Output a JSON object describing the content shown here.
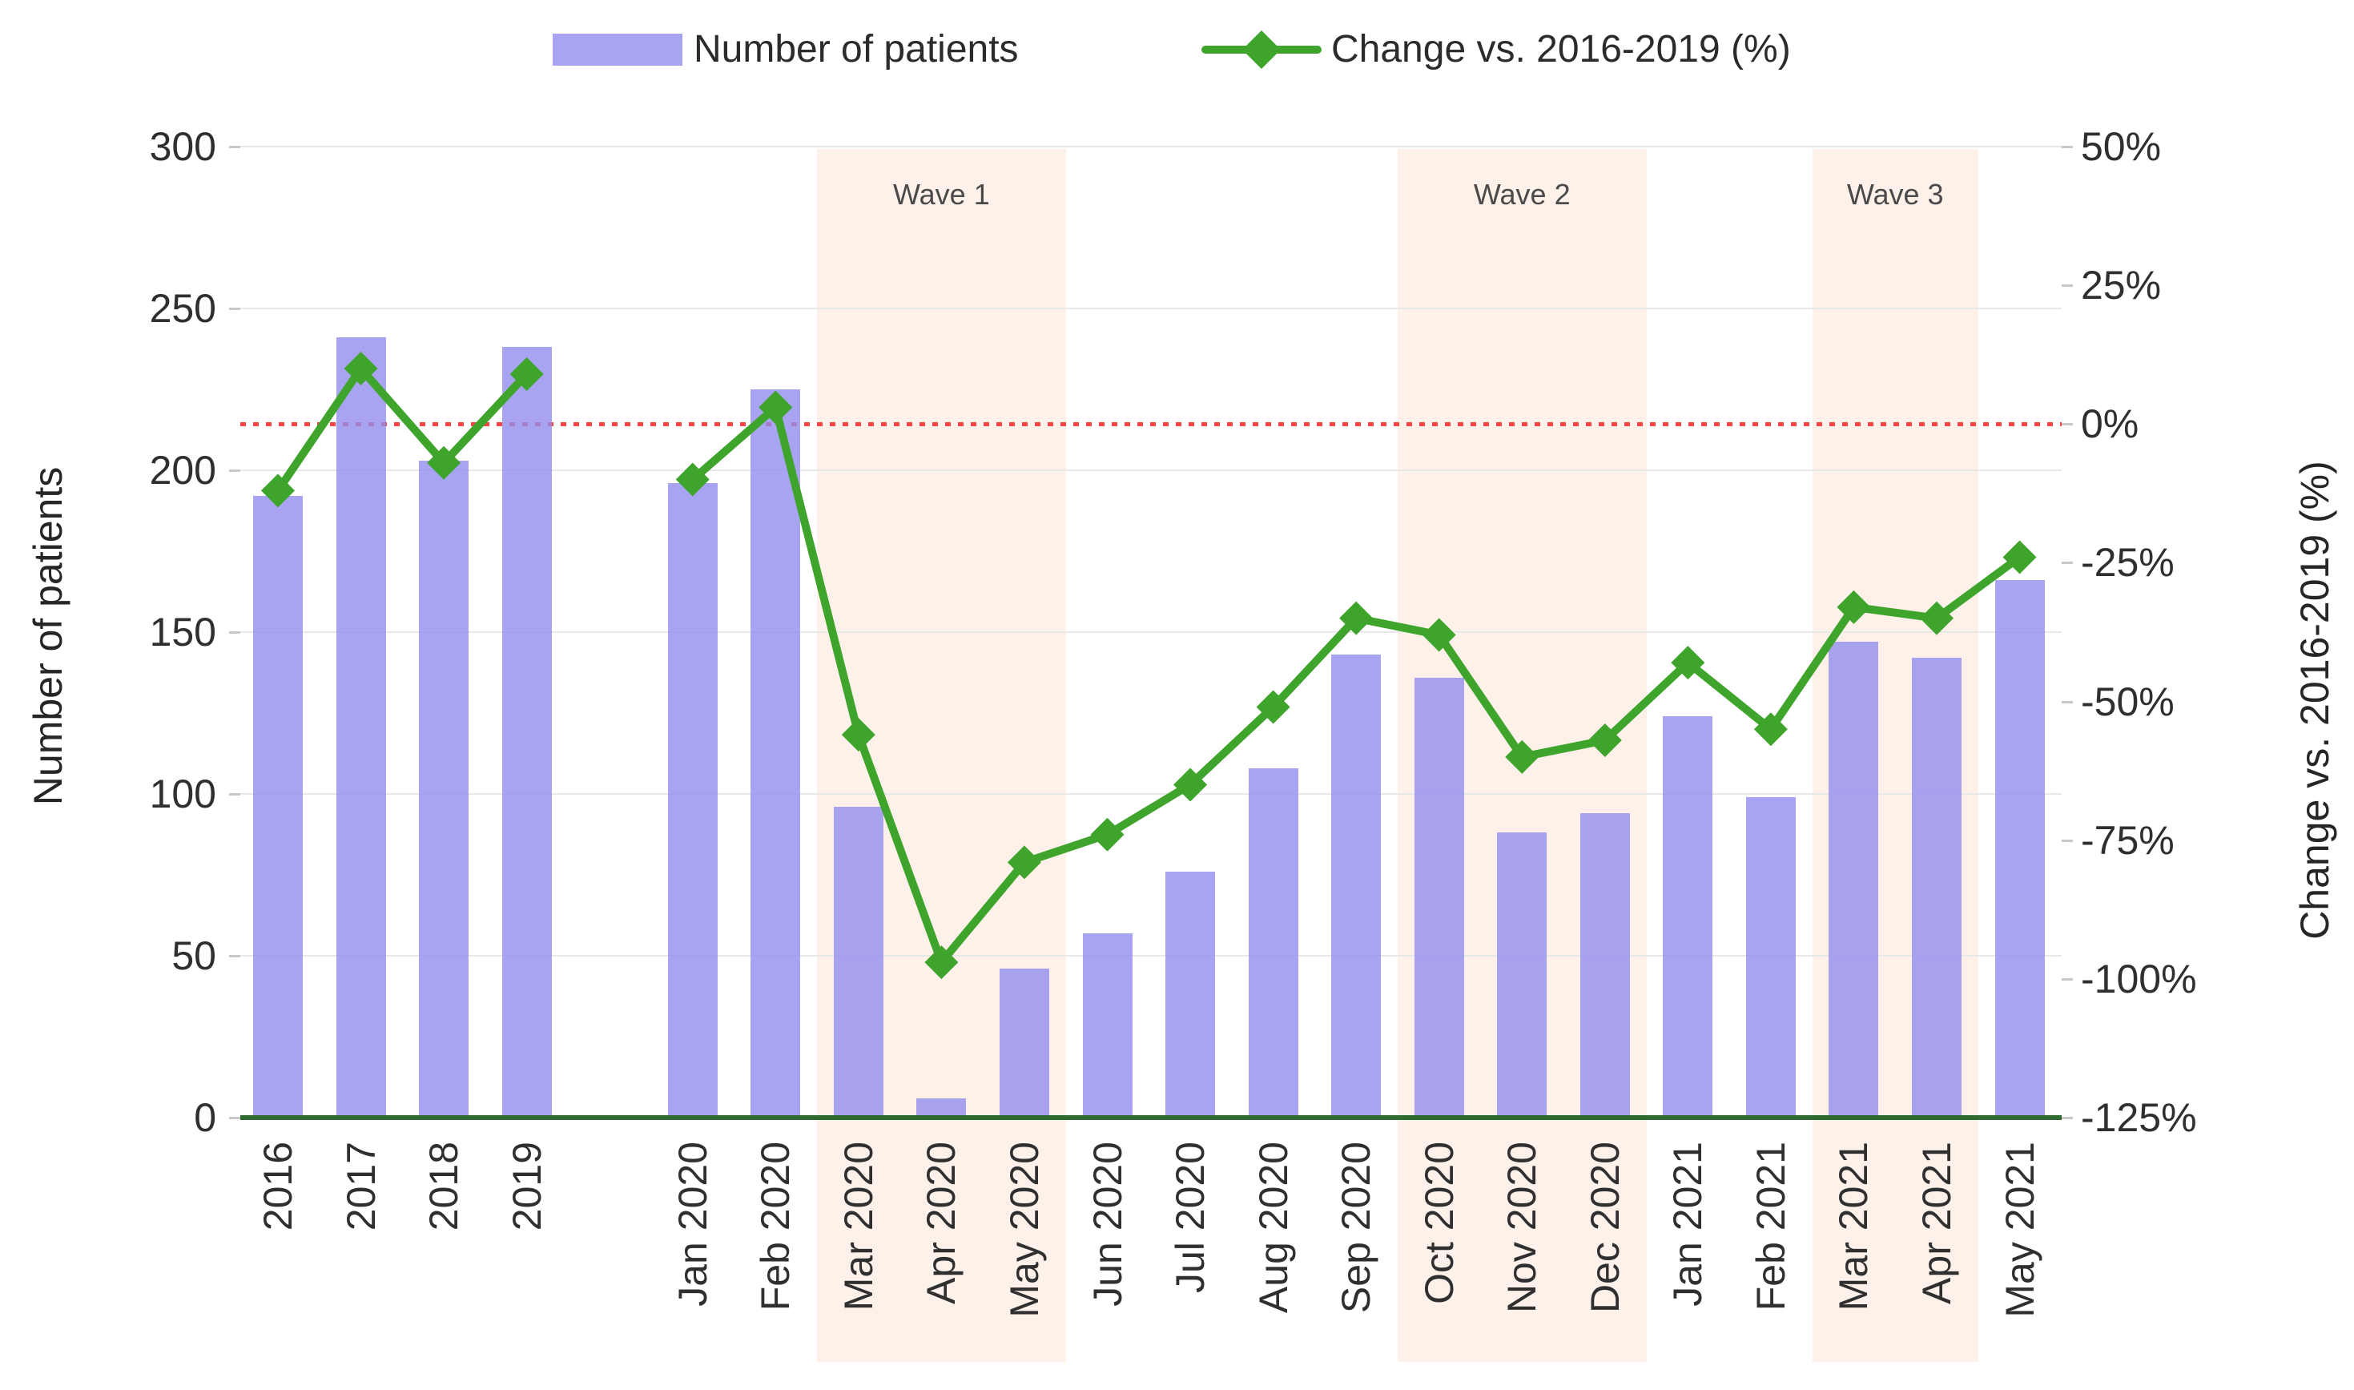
{
  "chart_data": {
    "type": "combo",
    "title": "",
    "categories": [
      "2016",
      "2017",
      "2018",
      "2019",
      "Jan 2020",
      "Feb 2020",
      "Mar 2020",
      "Apr 2020",
      "May 2020",
      "Jun 2020",
      "Jul 2020",
      "Aug 2020",
      "Sep 2020",
      "Oct 2020",
      "Nov 2020",
      "Dec 2020",
      "Jan 2021",
      "Feb 2021",
      "Mar 2021",
      "Apr 2021",
      "May 2021"
    ],
    "series": [
      {
        "name": "Number of patients",
        "type": "bar",
        "axis": "left",
        "values": [
          192,
          241,
          203,
          238,
          196,
          225,
          96,
          6,
          46,
          57,
          76,
          108,
          143,
          136,
          88,
          94,
          124,
          99,
          147,
          142,
          166
        ]
      },
      {
        "name": "Change vs. 2016-2019 (%)",
        "type": "line",
        "axis": "right",
        "values": [
          -12,
          10,
          -7,
          9,
          -10,
          3,
          -56,
          -97,
          -79,
          -74,
          -65,
          -51,
          -35,
          -38,
          -60,
          -57,
          -43,
          -55,
          -33,
          -35,
          -24
        ]
      }
    ],
    "left_axis": {
      "title": "Number of patients",
      "min": 0,
      "max": 300,
      "ticks": [
        0,
        50,
        100,
        150,
        200,
        250,
        300
      ]
    },
    "right_axis": {
      "title": "Change vs. 2016-2019 (%)",
      "min": -125,
      "max": 50,
      "tick_step": 25,
      "ticks": [
        "50%",
        "25%",
        "0%",
        "-25%",
        "-50%",
        "-75%",
        "-100%",
        "-125%"
      ]
    },
    "zero_reference_line": {
      "value": 0,
      "axis": "right",
      "style": "dotted"
    },
    "gap_after_category": "2019",
    "grid": true,
    "legend_position": "top",
    "annotations": [
      {
        "label": "Wave 1",
        "from": "Mar 2020",
        "to": "May 2020"
      },
      {
        "label": "Wave 2",
        "from": "Oct 2020",
        "to": "Dec 2020"
      },
      {
        "label": "Wave 3",
        "from": "Mar 2021",
        "to": "Apr 2021"
      }
    ]
  },
  "colors": {
    "bar": "rgba(146,141,238,0.8)",
    "line": "#3fa42c",
    "zero_line": "#f84444",
    "wave_band": "#fdf1ea",
    "gridline": "#e8e8e8",
    "axis_baseline": "#2f6b31",
    "text": "#2f2f2f",
    "wave_label_text": "#4a4a4a"
  }
}
